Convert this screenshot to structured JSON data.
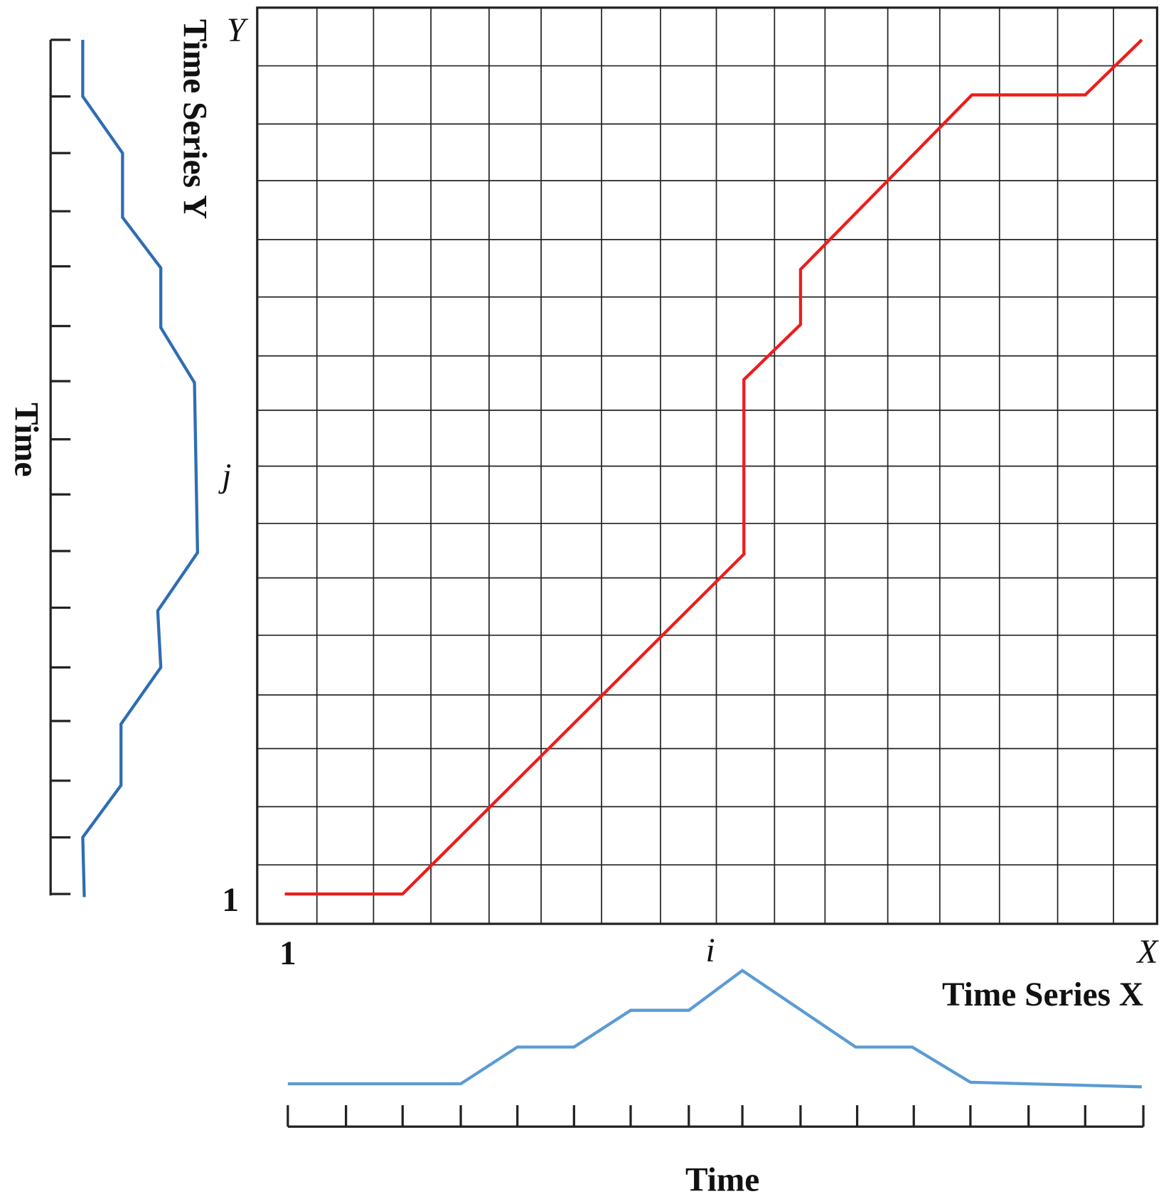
{
  "y_axis": {
    "series_title": "Time Series Y",
    "end_label": "Y",
    "index_label": "j",
    "start_label": "1",
    "time_label": "Time"
  },
  "x_axis": {
    "series_title": "Time Series X",
    "end_label": "X",
    "index_label": "i",
    "start_label": "1",
    "time_label": "Time"
  }
}
